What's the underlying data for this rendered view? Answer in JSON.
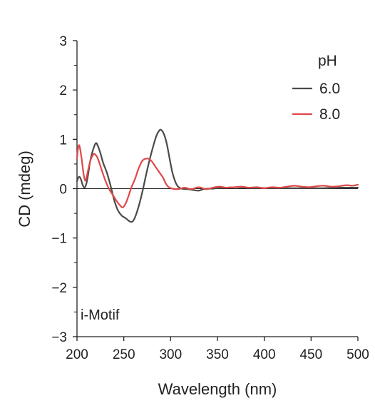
{
  "chart_data": {
    "type": "line",
    "title": "",
    "xlabel": "Wavelength (nm)",
    "ylabel": "CD (mdeg)",
    "xlim": [
      200,
      500
    ],
    "ylim": [
      -3,
      3
    ],
    "x_ticks": [
      200,
      250,
      300,
      350,
      400,
      450,
      500
    ],
    "x_tick_labels": [
      "200",
      "250",
      "300",
      "350",
      "400",
      "450",
      "500"
    ],
    "y_ticks": [
      3,
      2,
      1,
      0,
      -1,
      -2,
      -3
    ],
    "y_tick_labels": [
      "3",
      "2",
      "1",
      "0",
      "−1",
      "−2",
      "−3"
    ],
    "y_minor_ticks": [
      2.5,
      1.5,
      0.5,
      -0.5,
      -1.5,
      -2.5
    ],
    "zero_line": true,
    "grid": false,
    "legend": {
      "title": "pH",
      "placement": "top-right"
    },
    "annotation": "i-Motif",
    "series": [
      {
        "name": "6.0",
        "color": "#4a4a4a",
        "points": [
          [
            200,
            0.15
          ],
          [
            202,
            0.24
          ],
          [
            204,
            0.2
          ],
          [
            206,
            0.08
          ],
          [
            208,
            0.02
          ],
          [
            210,
            0.1
          ],
          [
            212,
            0.3
          ],
          [
            214,
            0.55
          ],
          [
            217,
            0.78
          ],
          [
            220,
            0.92
          ],
          [
            222,
            0.88
          ],
          [
            225,
            0.72
          ],
          [
            228,
            0.52
          ],
          [
            232,
            0.32
          ],
          [
            236,
            0.05
          ],
          [
            240,
            -0.25
          ],
          [
            244,
            -0.45
          ],
          [
            248,
            -0.55
          ],
          [
            252,
            -0.6
          ],
          [
            256,
            -0.66
          ],
          [
            259,
            -0.67
          ],
          [
            262,
            -0.58
          ],
          [
            266,
            -0.35
          ],
          [
            270,
            -0.05
          ],
          [
            274,
            0.3
          ],
          [
            278,
            0.62
          ],
          [
            282,
            0.9
          ],
          [
            285,
            1.08
          ],
          [
            288,
            1.18
          ],
          [
            290,
            1.19
          ],
          [
            293,
            1.1
          ],
          [
            296,
            0.9
          ],
          [
            299,
            0.6
          ],
          [
            302,
            0.32
          ],
          [
            305,
            0.14
          ],
          [
            308,
            0.04
          ],
          [
            312,
            0.0
          ],
          [
            318,
            -0.01
          ],
          [
            325,
            -0.03
          ],
          [
            330,
            -0.04
          ],
          [
            335,
            -0.01
          ],
          [
            340,
            0.0
          ],
          [
            345,
            0.0
          ],
          [
            350,
            0.01
          ],
          [
            360,
            0.02
          ],
          [
            370,
            0.03
          ],
          [
            380,
            0.02
          ],
          [
            390,
            0.01
          ],
          [
            400,
            0.01
          ],
          [
            420,
            0.01
          ],
          [
            440,
            0.01
          ],
          [
            460,
            0.01
          ],
          [
            480,
            0.02
          ],
          [
            500,
            0.02
          ]
        ]
      },
      {
        "name": "8.0",
        "color": "#e04848",
        "points": [
          [
            200,
            0.62
          ],
          [
            201,
            0.8
          ],
          [
            202,
            0.88
          ],
          [
            203,
            0.84
          ],
          [
            205,
            0.6
          ],
          [
            207,
            0.3
          ],
          [
            209,
            0.16
          ],
          [
            211,
            0.3
          ],
          [
            214,
            0.55
          ],
          [
            217,
            0.68
          ],
          [
            219,
            0.7
          ],
          [
            222,
            0.62
          ],
          [
            226,
            0.4
          ],
          [
            230,
            0.18
          ],
          [
            234,
            0.0
          ],
          [
            238,
            -0.12
          ],
          [
            242,
            -0.24
          ],
          [
            246,
            -0.34
          ],
          [
            249,
            -0.38
          ],
          [
            252,
            -0.3
          ],
          [
            255,
            -0.15
          ],
          [
            258,
            0.02
          ],
          [
            262,
            0.2
          ],
          [
            266,
            0.42
          ],
          [
            270,
            0.57
          ],
          [
            274,
            0.61
          ],
          [
            277,
            0.6
          ],
          [
            280,
            0.55
          ],
          [
            284,
            0.44
          ],
          [
            288,
            0.33
          ],
          [
            292,
            0.22
          ],
          [
            295,
            0.1
          ],
          [
            298,
            0.03
          ],
          [
            302,
            0.0
          ],
          [
            308,
            -0.01
          ],
          [
            315,
            0.02
          ],
          [
            322,
            -0.01
          ],
          [
            330,
            0.03
          ],
          [
            338,
            -0.01
          ],
          [
            345,
            0.02
          ],
          [
            352,
            0.04
          ],
          [
            360,
            0.02
          ],
          [
            368,
            0.03
          ],
          [
            376,
            0.04
          ],
          [
            384,
            0.02
          ],
          [
            392,
            0.03
          ],
          [
            400,
            0.01
          ],
          [
            408,
            0.03
          ],
          [
            416,
            0.02
          ],
          [
            424,
            0.04
          ],
          [
            432,
            0.06
          ],
          [
            440,
            0.04
          ],
          [
            448,
            0.03
          ],
          [
            456,
            0.05
          ],
          [
            464,
            0.06
          ],
          [
            472,
            0.04
          ],
          [
            480,
            0.05
          ],
          [
            488,
            0.07
          ],
          [
            494,
            0.06
          ],
          [
            500,
            0.08
          ]
        ]
      }
    ]
  }
}
